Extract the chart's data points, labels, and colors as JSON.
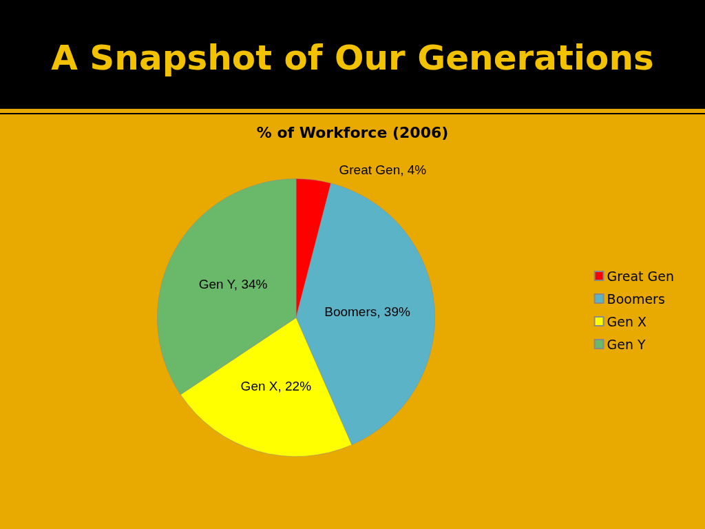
{
  "chart_data": {
    "type": "pie",
    "title": "A Snapshot of Our Generations",
    "subtitle": "% of Workforce (2006)",
    "categories": [
      "Great Gen",
      "Boomers",
      "Gen X",
      "Gen Y"
    ],
    "values": [
      4,
      39,
      22,
      34
    ],
    "colors": [
      "#ff0000",
      "#5bb3c8",
      "#ffff00",
      "#6ab96a"
    ],
    "value_labels": [
      "Great Gen, 4%",
      "Boomers, 39%",
      "Gen X, 22%",
      "Gen Y, 34%"
    ],
    "legend": "right"
  }
}
